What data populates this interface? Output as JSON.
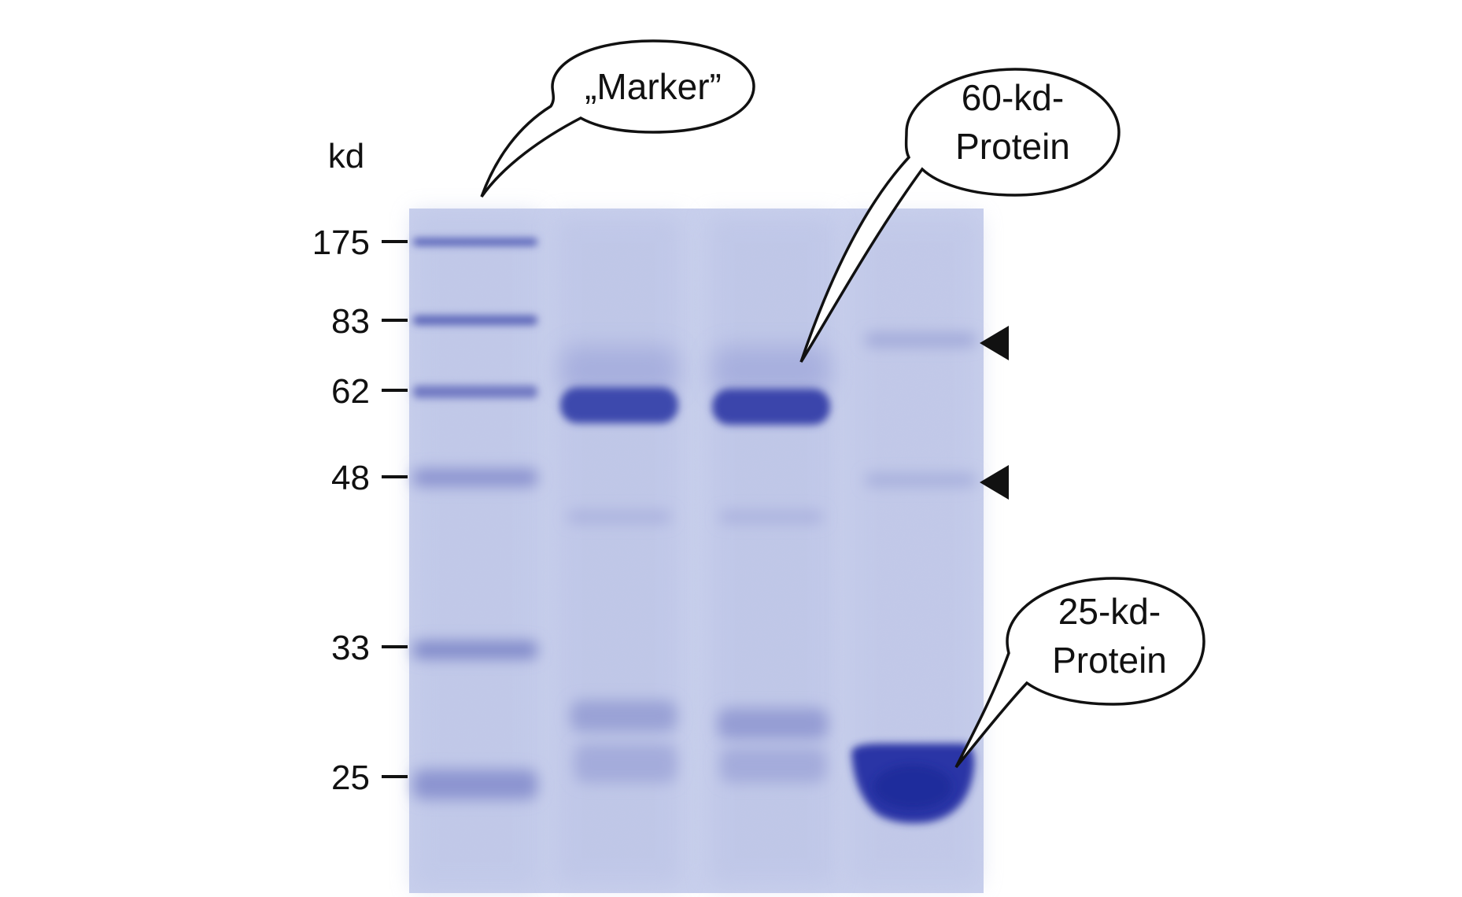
{
  "figure": {
    "axis_unit": "kd",
    "mw_labels": [
      "175",
      "83",
      "62",
      "48",
      "33",
      "25"
    ],
    "callouts": {
      "marker": "„Marker”",
      "protein_60_line1": "60-kd-",
      "protein_60_line2": "Protein",
      "protein_25_line1": "25-kd-",
      "protein_25_line2": "Protein"
    },
    "arrowheads": 2,
    "colors": {
      "gel_background": "#c9d0ec",
      "stain": "#2f3aa8",
      "stain_dark": "#1e2a9a",
      "text": "#111111"
    }
  }
}
